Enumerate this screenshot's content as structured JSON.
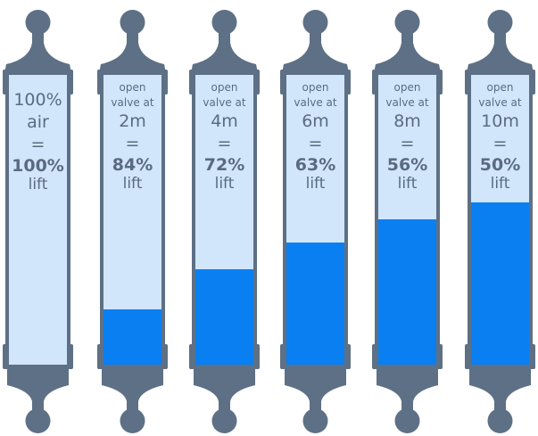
{
  "colors": {
    "frame": "#5e7085",
    "air": "#d2e6fb",
    "water": "#0a7ff2",
    "text": "#5a6b80"
  },
  "cylinders": [
    {
      "line1": "100%",
      "line2": "air",
      "depth": "",
      "equals": "=",
      "percent": "100%",
      "lift": "lift",
      "water_fraction": 0.0
    },
    {
      "line1": "open",
      "line2": "valve at",
      "depth": "2m",
      "equals": "=",
      "percent": "84%",
      "lift": "lift",
      "water_fraction": 0.19
    },
    {
      "line1": "open",
      "line2": "valve at",
      "depth": "4m",
      "equals": "=",
      "percent": "72%",
      "lift": "lift",
      "water_fraction": 0.33
    },
    {
      "line1": "open",
      "line2": "valve at",
      "depth": "6m",
      "equals": "=",
      "percent": "63%",
      "lift": "lift",
      "water_fraction": 0.42
    },
    {
      "line1": "open",
      "line2": "valve at",
      "depth": "8m",
      "equals": "=",
      "percent": "56%",
      "lift": "lift",
      "water_fraction": 0.5
    },
    {
      "line1": "open",
      "line2": "valve at",
      "depth": "10m",
      "equals": "=",
      "percent": "50%",
      "lift": "lift",
      "water_fraction": 0.56
    }
  ]
}
